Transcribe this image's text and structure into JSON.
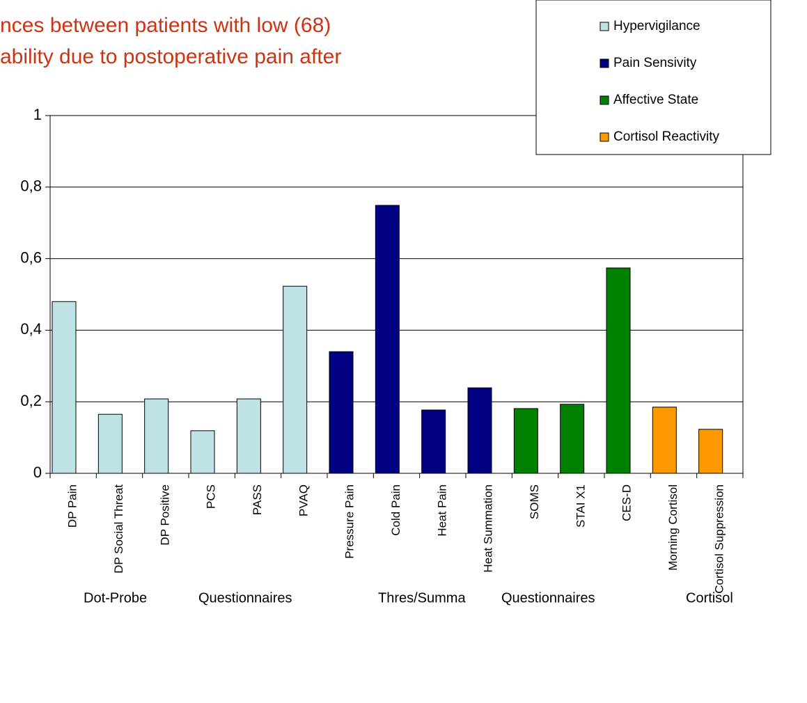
{
  "chart_data": {
    "type": "bar",
    "title_lines": [
      "nces between patients with low (68)",
      "ability due to postoperative pain after"
    ],
    "categories": [
      "DP Pain",
      "DP Social Threat",
      "DP Positive",
      "PCS",
      "PASS",
      "PVAQ",
      "Pressure Pain",
      "Cold Pain",
      "Heat Pain",
      "Heat Summation",
      "SOMS",
      "STAI X1",
      "CES-D",
      "Morning Cortisol",
      "Cortisol Suppression"
    ],
    "series": [
      {
        "name": "Hypervigilance",
        "color": "#bfe2e4",
        "values": [
          0.48,
          0.165,
          0.208,
          0.119,
          0.208,
          0.523,
          null,
          null,
          null,
          null,
          null,
          null,
          null,
          null,
          null
        ]
      },
      {
        "name": "Pain Sensivity",
        "color": "#000080",
        "values": [
          null,
          null,
          null,
          null,
          null,
          null,
          0.34,
          0.749,
          0.177,
          0.239,
          null,
          null,
          null,
          null,
          null
        ]
      },
      {
        "name": "Affective State",
        "color": "#008000",
        "values": [
          null,
          null,
          null,
          null,
          null,
          null,
          null,
          null,
          null,
          null,
          0.181,
          0.193,
          0.574,
          null,
          null
        ]
      },
      {
        "name": "Cortisol Reactivity",
        "color": "#ff9900",
        "values": [
          null,
          null,
          null,
          null,
          null,
          null,
          null,
          null,
          null,
          null,
          null,
          null,
          null,
          0.185,
          0.123
        ]
      }
    ],
    "group_labels": [
      "Dot-Probe",
      "Questionnaires",
      "Thres/Summa",
      "Questionnaires",
      "Cortisol"
    ],
    "ylim": [
      0,
      1
    ],
    "yticks": [
      0,
      {
        "value": 0.2,
        "label": "0,2"
      },
      {
        "value": 0.4,
        "label": "0,4"
      },
      {
        "value": 0.6,
        "label": "0,6"
      },
      {
        "value": 0.8,
        "label": "0,8"
      },
      1
    ],
    "grid": true
  }
}
